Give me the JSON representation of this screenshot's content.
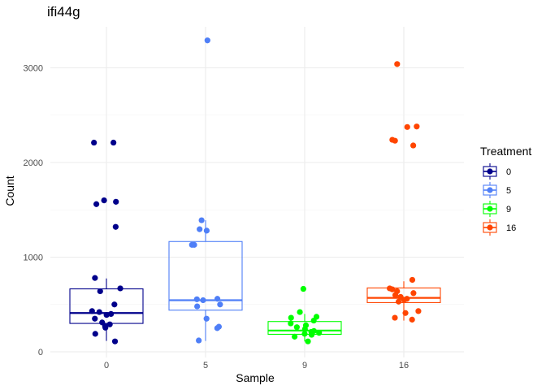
{
  "chart_data": {
    "type": "boxplot",
    "title": "ifi44g",
    "xlabel": "Sample",
    "ylabel": "Count",
    "categories": [
      "0",
      "5",
      "9",
      "16"
    ],
    "ylim": [
      0,
      3400
    ],
    "yticks": [
      0,
      1000,
      2000,
      3000
    ],
    "grid": true,
    "legend": {
      "title": "Treatment",
      "placement": "right",
      "entries": [
        "0",
        "5",
        "9",
        "16"
      ]
    },
    "series": [
      {
        "name": "0",
        "color": "#00008B",
        "box": {
          "whisker_low": 115,
          "q1": 300,
          "median": 410,
          "q3": 665,
          "whisker_high": 775
        },
        "points": [
          2210,
          2210,
          1600,
          1585,
          1560,
          1320,
          780,
          670,
          640,
          500,
          430,
          420,
          400,
          390,
          350,
          310,
          290,
          270,
          255,
          190,
          110
        ]
      },
      {
        "name": "5",
        "color": "#4F7FF7",
        "box": {
          "whisker_low": 115,
          "q1": 440,
          "median": 545,
          "q3": 1165,
          "whisker_high": 1390
        },
        "points": [
          3290,
          1390,
          1295,
          1280,
          1130,
          1130,
          560,
          555,
          545,
          500,
          480,
          350,
          265,
          250,
          120
        ]
      },
      {
        "name": "9",
        "color": "#00FF00",
        "box": {
          "whisker_low": 110,
          "q1": 185,
          "median": 225,
          "q3": 320,
          "whisker_high": 400
        },
        "points": [
          665,
          420,
          370,
          360,
          330,
          300,
          280,
          260,
          240,
          220,
          210,
          200,
          190,
          180,
          160,
          110
        ]
      },
      {
        "name": "16",
        "color": "#FF4500",
        "box": {
          "whisker_low": 330,
          "q1": 520,
          "median": 570,
          "q3": 675,
          "whisker_high": 745
        },
        "points": [
          3040,
          2380,
          2375,
          2240,
          2230,
          2180,
          760,
          670,
          660,
          640,
          620,
          600,
          580,
          560,
          550,
          530,
          430,
          410,
          360,
          340
        ]
      }
    ]
  }
}
